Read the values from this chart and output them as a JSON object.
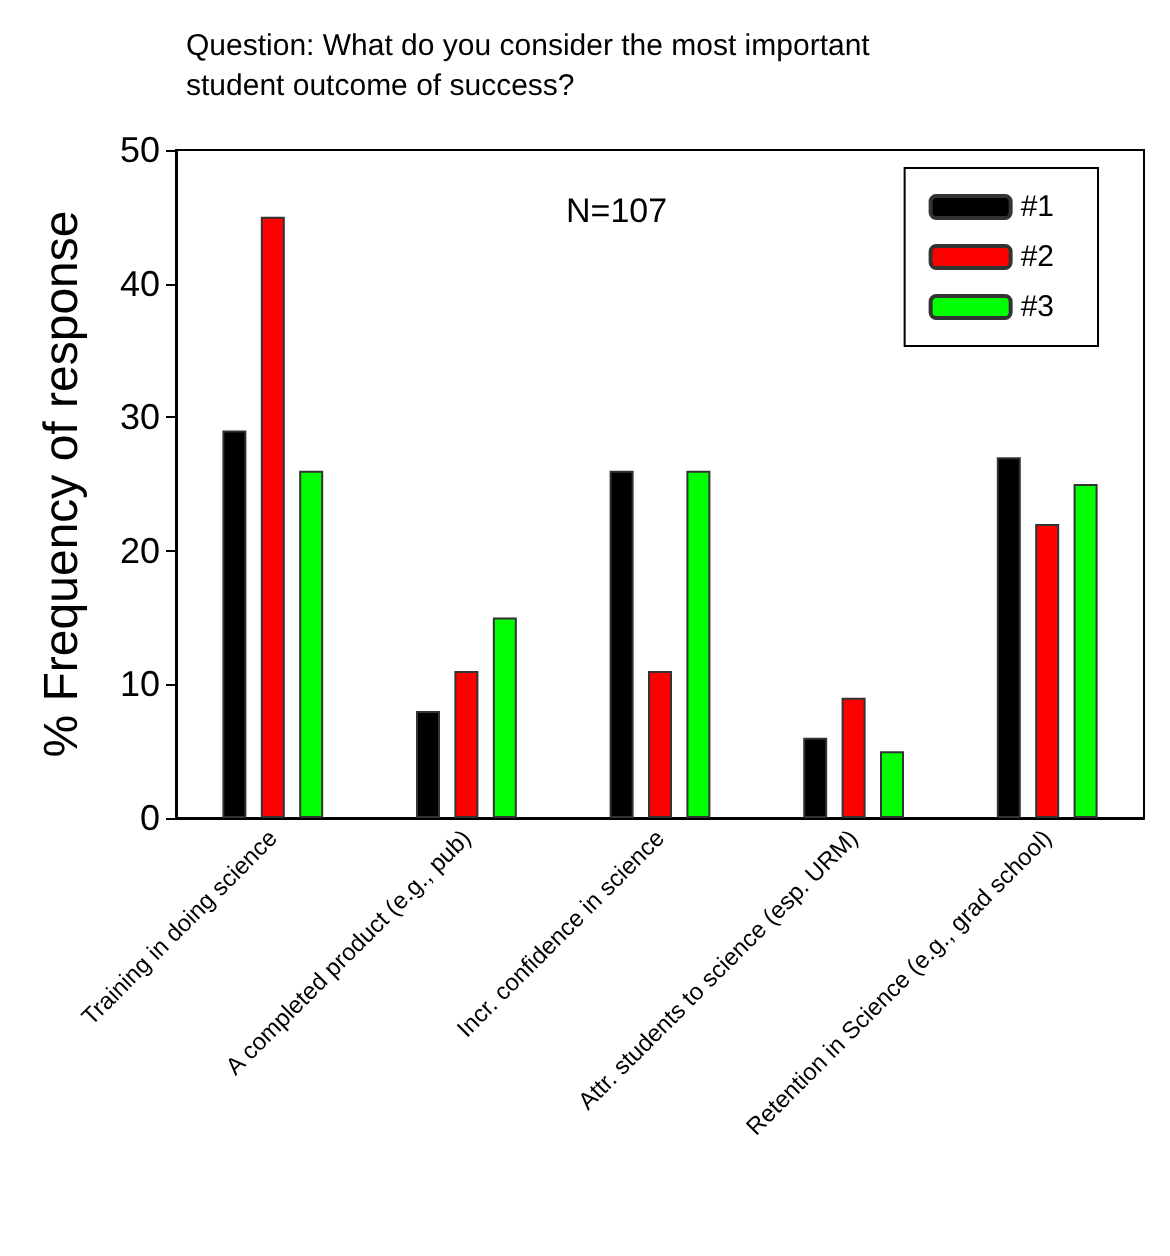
{
  "chart_data": {
    "type": "bar",
    "title": "Question: What do you consider the most important\nstudent outcome of success?",
    "ylabel": "% Frequency of response",
    "annotations": [
      "N=107"
    ],
    "categories": [
      "Training in doing science",
      "A completed product (e.g., pub)",
      "Incr. confidence in science",
      "Attr. students to science (esp. URM)",
      "Retention in Science (e.g., grad school)"
    ],
    "series": [
      {
        "name": "#1",
        "color": "#000000",
        "values": [
          29,
          8,
          26,
          6,
          27
        ]
      },
      {
        "name": "#2",
        "color": "#ff0000",
        "values": [
          45,
          11,
          11,
          9,
          22
        ]
      },
      {
        "name": "#3",
        "color": "#00ff00",
        "values": [
          26,
          15,
          26,
          5,
          25
        ]
      }
    ],
    "ylim": [
      0,
      50
    ],
    "yticks": [
      0,
      10,
      20,
      30,
      40,
      50
    ],
    "grid": false,
    "legend": "top right"
  }
}
